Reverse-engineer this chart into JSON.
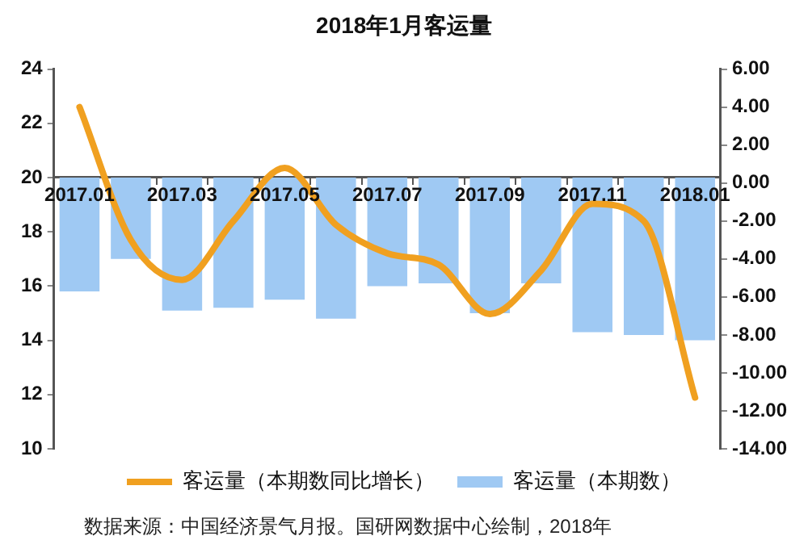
{
  "chart_data": {
    "type": "bar",
    "title": "2018年1月客运量",
    "categories": [
      "2017.01",
      null,
      "2017.03",
      null,
      "2017.05",
      null,
      "2017.07",
      null,
      "2017.09",
      null,
      "2017.11",
      null,
      "2018.01"
    ],
    "series": [
      {
        "name": "客运量（本期数）",
        "color": "#9fc9f3",
        "base": [
          20,
          20,
          20,
          20,
          20,
          20,
          20,
          20,
          20,
          20,
          20,
          20,
          20
        ],
        "values": [
          -4.2,
          -3.0,
          -4.9,
          -4.8,
          -4.5,
          -5.2,
          -4.0,
          -3.9,
          -5.0,
          -3.9,
          -5.7,
          -5.8,
          -6.0
        ]
      },
      {
        "name": "客运量（本期数同比增长）",
        "type": "line",
        "axis": "y2",
        "color": "#f0a020",
        "values": [
          4.0,
          -3.0,
          -5.1,
          -2.0,
          0.8,
          -2.2,
          -3.7,
          -4.3,
          -6.9,
          -4.6,
          -1.1,
          -2.0,
          -11.3
        ]
      }
    ],
    "ylim": [
      10,
      24
    ],
    "yticks": [
      10,
      12,
      14,
      16,
      18,
      20,
      22,
      24
    ],
    "y2lim": [
      -14,
      6
    ],
    "y2ticks": [
      {
        "value": -14,
        "label": "-14.00"
      },
      {
        "value": -12,
        "label": "-12.00"
      },
      {
        "value": -10,
        "label": "-10.00"
      },
      {
        "value": -8,
        "label": "-8.00"
      },
      {
        "value": -6,
        "label": "-6.00"
      },
      {
        "value": -4,
        "label": "-4.00"
      },
      {
        "value": -2,
        "label": "-2.00"
      },
      {
        "value": 0,
        "label": "0.00"
      },
      {
        "value": 2,
        "label": "2.00"
      },
      {
        "value": 4,
        "label": "4.00"
      },
      {
        "value": 6,
        "label": "6.00"
      }
    ],
    "grid": false,
    "legend": "bottom",
    "marker": "none",
    "line_style": "solid",
    "annotations": [
      "数据来源：中国经济景气月报。国研网数据中心绘制，2018年"
    ]
  }
}
